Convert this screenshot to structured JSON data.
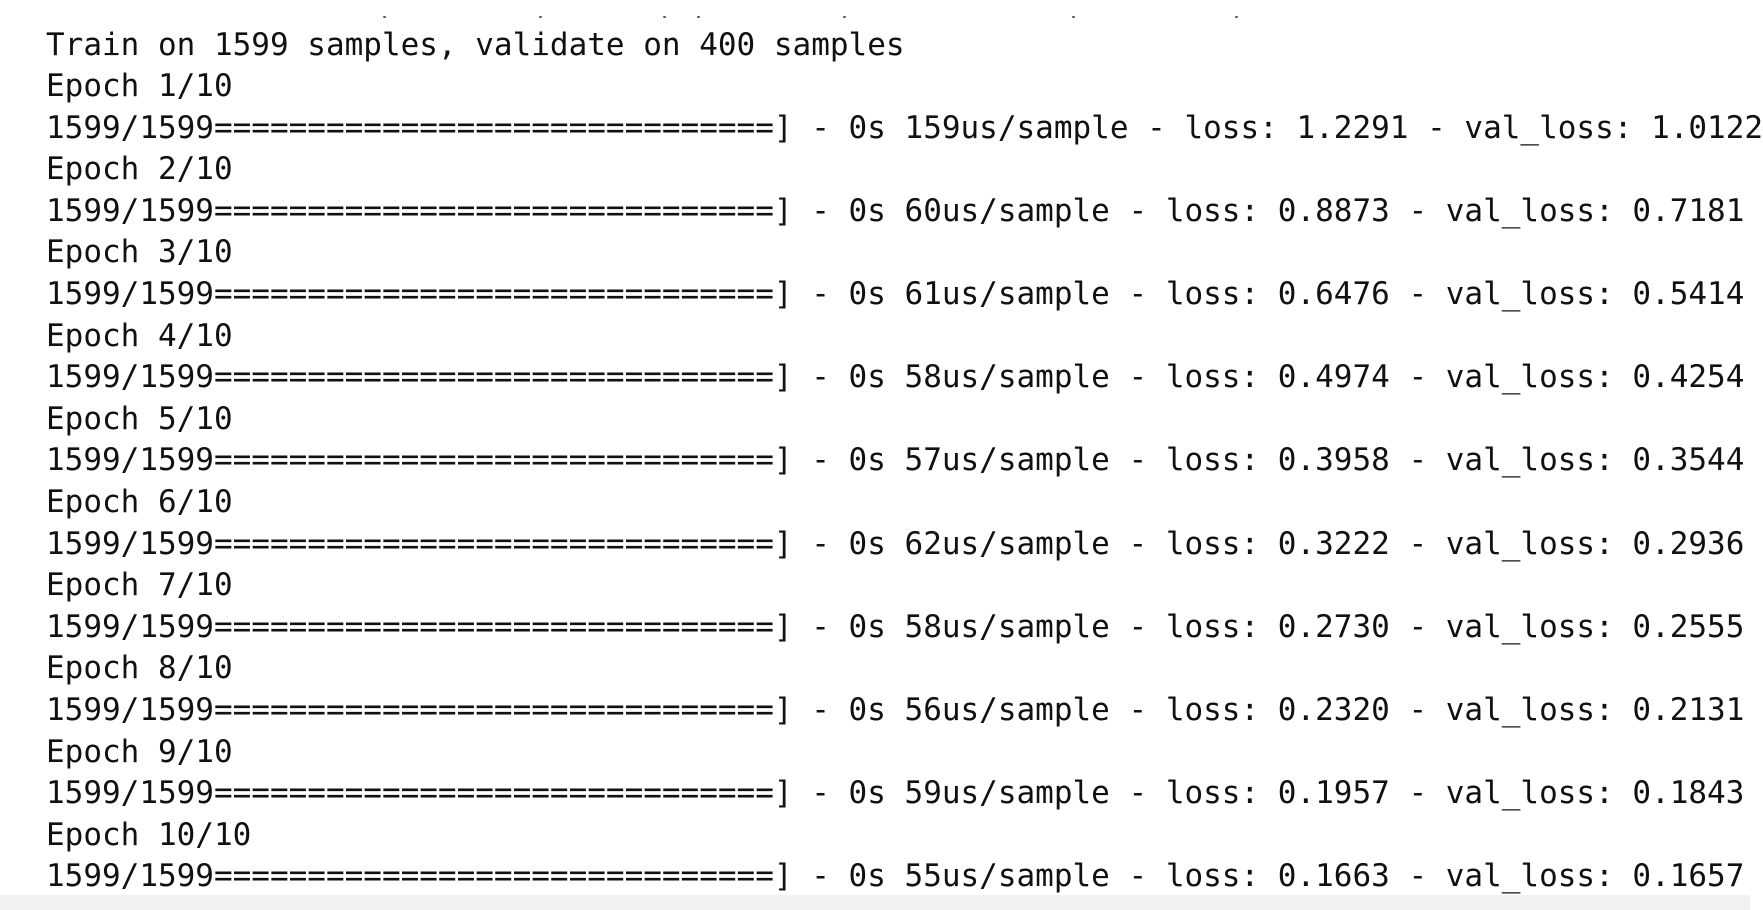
{
  "console": {
    "header": "Train on 1599 samples, validate on 400 samples",
    "epochs": [
      {
        "label": "Epoch 1/10",
        "progress": "1599/1599==============================] - 0s 159us/sample - loss: 1.2291 - val_loss: 1.0122"
      },
      {
        "label": "Epoch 2/10",
        "progress": "1599/1599==============================] - 0s 60us/sample - loss: 0.8873 - val_loss: 0.7181"
      },
      {
        "label": "Epoch 3/10",
        "progress": "1599/1599==============================] - 0s 61us/sample - loss: 0.6476 - val_loss: 0.5414"
      },
      {
        "label": "Epoch 4/10",
        "progress": "1599/1599==============================] - 0s 58us/sample - loss: 0.4974 - val_loss: 0.4254"
      },
      {
        "label": "Epoch 5/10",
        "progress": "1599/1599==============================] - 0s 57us/sample - loss: 0.3958 - val_loss: 0.3544"
      },
      {
        "label": "Epoch 6/10",
        "progress": "1599/1599==============================] - 0s 62us/sample - loss: 0.3222 - val_loss: 0.2936"
      },
      {
        "label": "Epoch 7/10",
        "progress": "1599/1599==============================] - 0s 58us/sample - loss: 0.2730 - val_loss: 0.2555"
      },
      {
        "label": "Epoch 8/10",
        "progress": "1599/1599==============================] - 0s 56us/sample - loss: 0.2320 - val_loss: 0.2131"
      },
      {
        "label": "Epoch 9/10",
        "progress": "1599/1599==============================] - 0s 59us/sample - loss: 0.1957 - val_loss: 0.1843"
      },
      {
        "label": "Epoch 10/10",
        "progress": "1599/1599==============================] - 0s 55us/sample - loss: 0.1663 - val_loss: 0.1657"
      }
    ]
  }
}
